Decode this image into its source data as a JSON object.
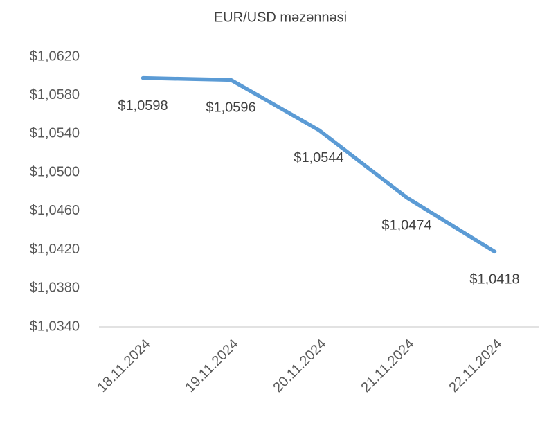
{
  "chart_data": {
    "type": "line",
    "title": "EUR/USD məzənnəsi",
    "categories": [
      "18.11.2024",
      "19.11.2024",
      "20.11.2024",
      "21.11.2024",
      "22.11.2024"
    ],
    "values": [
      1.0598,
      1.0596,
      1.0544,
      1.0474,
      1.0418
    ],
    "value_labels": [
      "$1,0598",
      "$1,0596",
      "$1,0544",
      "$1,0474",
      "$1,0418"
    ],
    "color": "#5b9bd5",
    "ylim": [
      1.034,
      1.062
    ],
    "yticks": [
      {
        "value": 1.034,
        "label": "$1,0340"
      },
      {
        "value": 1.038,
        "label": "$1,0380"
      },
      {
        "value": 1.042,
        "label": "$1,0420"
      },
      {
        "value": 1.046,
        "label": "$1,0460"
      },
      {
        "value": 1.05,
        "label": "$1,0500"
      },
      {
        "value": 1.054,
        "label": "$1,0540"
      },
      {
        "value": 1.058,
        "label": "$1,0580"
      },
      {
        "value": 1.062,
        "label": "$1,0620"
      }
    ],
    "grid": false
  }
}
